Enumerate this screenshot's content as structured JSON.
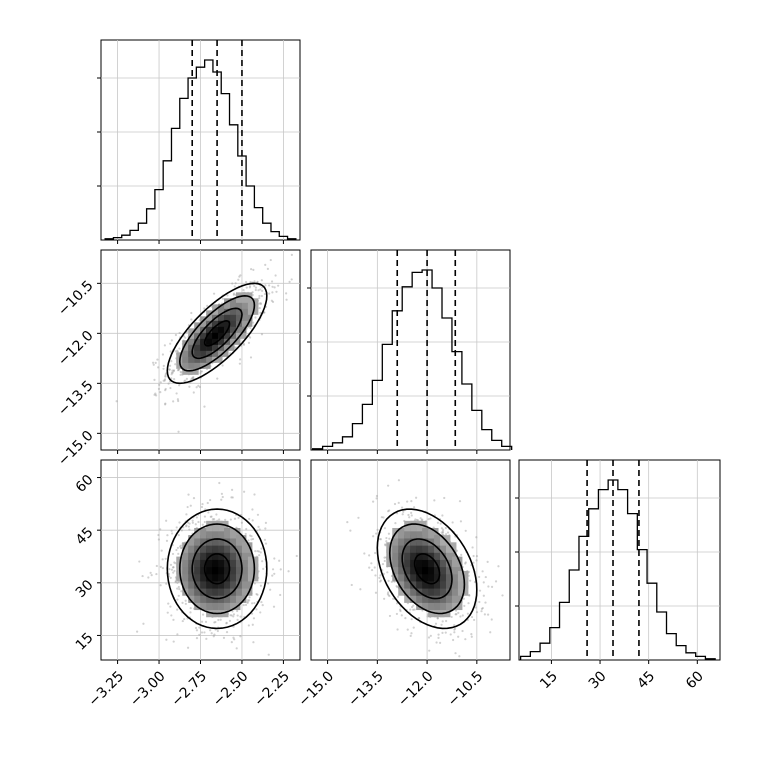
{
  "chart_data": [
    {
      "type": "histogram",
      "panel": "marginal-param-1",
      "x_range": [
        -3.35,
        -2.15
      ],
      "bins": [
        -3.3,
        -3.25,
        -3.2,
        -3.15,
        -3.1,
        -3.05,
        -3.0,
        -2.95,
        -2.9,
        -2.85,
        -2.8,
        -2.75,
        -2.7,
        -2.65,
        -2.6,
        -2.55,
        -2.5,
        -2.45,
        -2.4,
        -2.35,
        -2.3,
        -2.25,
        -2.2
      ],
      "counts": [
        1,
        2,
        4,
        8,
        14,
        26,
        42,
        66,
        93,
        118,
        135,
        144,
        150,
        140,
        122,
        96,
        70,
        45,
        27,
        14,
        7,
        3,
        1
      ],
      "quantiles": [
        -2.8,
        -2.65,
        -2.5
      ],
      "x_ticks": [
        "-3.25",
        "-3.00",
        "-2.75",
        "-2.50",
        "-2.25"
      ],
      "x_tick_values": [
        -3.25,
        -3.0,
        -2.75,
        -2.5,
        -2.25
      ]
    },
    {
      "type": "histogram",
      "panel": "marginal-param-2",
      "x_range": [
        -15.5,
        -9.5
      ],
      "bins": [
        -15.3,
        -15.0,
        -14.7,
        -14.4,
        -14.1,
        -13.8,
        -13.5,
        -13.2,
        -12.9,
        -12.6,
        -12.3,
        -12.0,
        -11.7,
        -11.4,
        -11.1,
        -10.8,
        -10.5,
        -10.2,
        -9.9,
        -9.6
      ],
      "counts": [
        1,
        3,
        6,
        11,
        22,
        38,
        58,
        88,
        116,
        136,
        148,
        150,
        135,
        110,
        82,
        55,
        33,
        17,
        8,
        3
      ],
      "quantiles": [
        -12.9,
        -12.0,
        -11.15
      ],
      "x_ticks": [
        "-15.0",
        "-13.5",
        "-12.0",
        "-10.5"
      ],
      "x_tick_values": [
        -15.0,
        -13.5,
        -12.0,
        -10.5
      ]
    },
    {
      "type": "histogram",
      "panel": "marginal-param-3",
      "x_range": [
        5,
        67
      ],
      "bins": [
        7,
        10,
        13,
        16,
        19,
        22,
        25,
        28,
        31,
        34,
        37,
        40,
        43,
        46,
        49,
        52,
        55,
        58,
        61,
        64
      ],
      "counts": [
        3,
        7,
        14,
        27,
        48,
        75,
        103,
        126,
        142,
        150,
        142,
        122,
        92,
        64,
        40,
        22,
        12,
        6,
        3,
        1
      ],
      "quantiles": [
        26,
        34,
        42
      ],
      "x_ticks": [
        "15",
        "30",
        "45",
        "60"
      ],
      "x_tick_values": [
        15,
        30,
        45,
        60
      ]
    },
    {
      "type": "heatmap",
      "panel": "joint-param-1-param-2",
      "x_range": [
        -3.35,
        -2.15
      ],
      "y_range": [
        -15.5,
        -9.5
      ],
      "mean": [
        -2.65,
        -12.0
      ],
      "sd": [
        0.15,
        0.75
      ],
      "correlation": 0.75,
      "x_ticks": [
        "-3.25",
        "-3.00",
        "-2.75",
        "-2.50",
        "-2.25"
      ],
      "x_tick_values": [
        -3.25,
        -3.0,
        -2.75,
        -2.5,
        -2.25
      ],
      "y_ticks": [
        "-10.5",
        "-12.0",
        "-13.5",
        "-15.0"
      ],
      "y_tick_values": [
        -10.5,
        -12.0,
        -13.5,
        -15.0
      ]
    },
    {
      "type": "heatmap",
      "panel": "joint-param-1-param-3",
      "x_range": [
        -3.35,
        -2.15
      ],
      "y_range": [
        8,
        65
      ],
      "mean": [
        -2.65,
        34
      ],
      "sd": [
        0.15,
        8.5
      ],
      "correlation": 0.0,
      "x_ticks": [
        "-3.25",
        "-3.00",
        "-2.75",
        "-2.50",
        "-2.25"
      ],
      "x_tick_values": [
        -3.25,
        -3.0,
        -2.75,
        -2.5,
        -2.25
      ],
      "y_ticks": [
        "60",
        "45",
        "30",
        "15"
      ],
      "y_tick_values": [
        60,
        45,
        30,
        15
      ]
    },
    {
      "type": "heatmap",
      "panel": "joint-param-2-param-3",
      "x_range": [
        -15.5,
        -9.5
      ],
      "y_range": [
        8,
        65
      ],
      "mean": [
        -12.0,
        34
      ],
      "sd": [
        0.75,
        8.5
      ],
      "correlation": -0.35,
      "x_ticks": [
        "-15.0",
        "-13.5",
        "-12.0",
        "-10.5"
      ],
      "x_tick_values": [
        -15.0,
        -13.5,
        -12.0,
        -10.5
      ],
      "y_ticks": [],
      "y_tick_values": []
    }
  ]
}
